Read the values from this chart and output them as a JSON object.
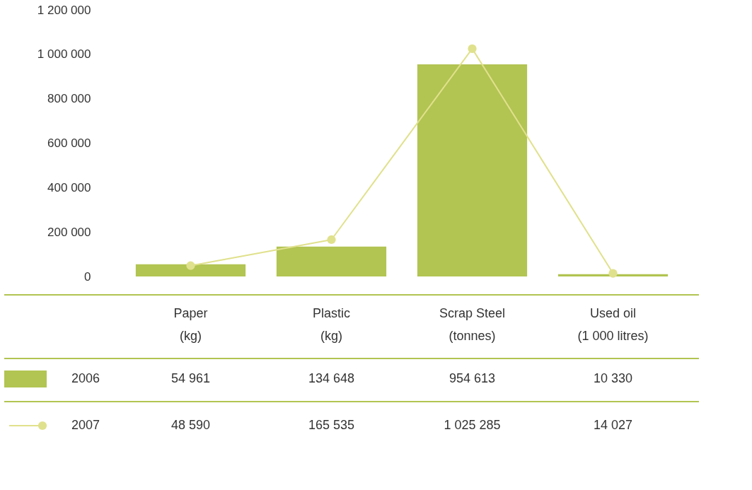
{
  "chart_data": {
    "type": "bar",
    "categories": [
      "Paper\n(kg)",
      "Plastic\n(kg)",
      "Scrap Steel\n(tonnes)",
      "Used oil\n(1 000 litres)"
    ],
    "series": [
      {
        "name": "2006",
        "type": "bar",
        "color": "#b2c452",
        "values": [
          54961,
          134648,
          954613,
          10330
        ],
        "value_labels": [
          "54 961",
          "134 648",
          "954 613",
          "10 330"
        ]
      },
      {
        "name": "2007",
        "type": "line",
        "color": "#e0e18c",
        "marker": "circle",
        "values": [
          48590,
          165535,
          1025285,
          14027
        ],
        "value_labels": [
          "48 590",
          "165 535",
          "1 025 285",
          "14 027"
        ]
      }
    ],
    "ylim": [
      0,
      1200000
    ],
    "yticks": [
      0,
      {
        "value": 200000,
        "label": "200 000"
      },
      {
        "value": 400000,
        "label": "400 000"
      },
      {
        "value": 600000,
        "label": "600 000"
      },
      {
        "value": 800000,
        "label": "800 000"
      },
      {
        "value": 1000000,
        "label": "1 000 000"
      },
      {
        "value": 1200000,
        "label": "1 200 000"
      }
    ],
    "legend": "bottom left"
  }
}
